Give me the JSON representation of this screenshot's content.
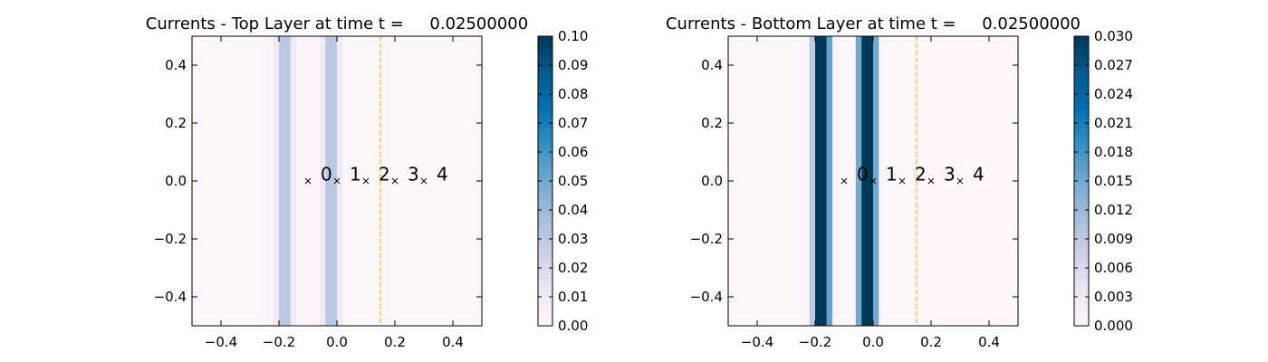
{
  "chart_data": [
    {
      "type": "heatmap",
      "title": "Currents - Top Layer at time t =     0.02500000",
      "xlim": [
        -0.5,
        0.5
      ],
      "ylim": [
        -0.5,
        0.5
      ],
      "xticks": [
        -0.4,
        -0.2,
        0.0,
        0.2,
        0.4
      ],
      "xtick_labels": [
        "−0.4",
        "−0.2",
        "0.0",
        "0.2",
        "0.4"
      ],
      "yticks": [
        -0.4,
        -0.2,
        0.0,
        0.2,
        0.4
      ],
      "ytick_labels": [
        "−0.4",
        "−0.2",
        "0.0",
        "0.2",
        "0.4"
      ],
      "colormap": "Blues",
      "colorbar": {
        "min": 0.0,
        "max": 0.1,
        "ticks": [
          0.0,
          0.01,
          0.02,
          0.03,
          0.04,
          0.05,
          0.06,
          0.07,
          0.08,
          0.09,
          0.1
        ],
        "tick_labels": [
          "0.00",
          "0.01",
          "0.02",
          "0.03",
          "0.04",
          "0.05",
          "0.06",
          "0.07",
          "0.08",
          "0.09",
          "0.10"
        ]
      },
      "columns": [
        {
          "x0": -0.5,
          "x1": -0.25,
          "value": 0.001
        },
        {
          "x0": -0.25,
          "x1": -0.22,
          "value": 0.004
        },
        {
          "x0": -0.22,
          "x1": -0.2,
          "value": 0.01
        },
        {
          "x0": -0.2,
          "x1": -0.16,
          "value": 0.031
        },
        {
          "x0": -0.16,
          "x1": -0.14,
          "value": 0.01
        },
        {
          "x0": -0.14,
          "x1": -0.06,
          "value": 0.002
        },
        {
          "x0": -0.06,
          "x1": -0.04,
          "value": 0.01
        },
        {
          "x0": -0.04,
          "x1": 0.0,
          "value": 0.031
        },
        {
          "x0": 0.0,
          "x1": 0.02,
          "value": 0.01
        },
        {
          "x0": 0.02,
          "x1": 0.5,
          "value": 0.001
        }
      ],
      "markers": [
        {
          "x": -0.1,
          "y": 0.0,
          "label": "0"
        },
        {
          "x": 0.0,
          "y": 0.0,
          "label": "1"
        },
        {
          "x": 0.1,
          "y": 0.0,
          "label": "2"
        },
        {
          "x": 0.2,
          "y": 0.0,
          "label": "3"
        },
        {
          "x": 0.3,
          "y": 0.0,
          "label": "4"
        }
      ],
      "vline": {
        "x": 0.15,
        "color": "#e8b600",
        "style": "dashed"
      }
    },
    {
      "type": "heatmap",
      "title": "Currents - Bottom Layer at time t =     0.02500000",
      "xlim": [
        -0.5,
        0.5
      ],
      "ylim": [
        -0.5,
        0.5
      ],
      "xticks": [
        -0.4,
        -0.2,
        0.0,
        0.2,
        0.4
      ],
      "xtick_labels": [
        "−0.4",
        "−0.2",
        "0.0",
        "0.2",
        "0.4"
      ],
      "yticks": [
        -0.4,
        -0.2,
        0.0,
        0.2,
        0.4
      ],
      "ytick_labels": [
        "−0.4",
        "−0.2",
        "0.0",
        "0.2",
        "0.4"
      ],
      "colormap": "Blues",
      "colorbar": {
        "min": 0.0,
        "max": 0.03,
        "ticks": [
          0.0,
          0.003,
          0.006,
          0.009,
          0.012,
          0.015,
          0.018,
          0.021,
          0.024,
          0.027,
          0.03
        ],
        "tick_labels": [
          "0.000",
          "0.003",
          "0.006",
          "0.009",
          "0.012",
          "0.015",
          "0.018",
          "0.021",
          "0.024",
          "0.027",
          "0.030"
        ]
      },
      "columns": [
        {
          "x0": -0.5,
          "x1": -0.22,
          "value": 0.0003
        },
        {
          "x0": -0.22,
          "x1": -0.2,
          "value": 0.009
        },
        {
          "x0": -0.2,
          "x1": -0.16,
          "value": 0.03
        },
        {
          "x0": -0.16,
          "x1": -0.14,
          "value": 0.016
        },
        {
          "x0": -0.14,
          "x1": -0.12,
          "value": 0.001
        },
        {
          "x0": -0.12,
          "x1": -0.06,
          "value": 0.0003
        },
        {
          "x0": -0.06,
          "x1": -0.04,
          "value": 0.015
        },
        {
          "x0": -0.04,
          "x1": 0.0,
          "value": 0.03
        },
        {
          "x0": 0.0,
          "x1": 0.02,
          "value": 0.015
        },
        {
          "x0": 0.02,
          "x1": 0.15,
          "value": 0.0003
        },
        {
          "x0": 0.15,
          "x1": 0.5,
          "value": 0.0
        }
      ],
      "markers": [
        {
          "x": -0.1,
          "y": 0.0,
          "label": "0"
        },
        {
          "x": 0.0,
          "y": 0.0,
          "label": "1"
        },
        {
          "x": 0.1,
          "y": 0.0,
          "label": "2"
        },
        {
          "x": 0.2,
          "y": 0.0,
          "label": "3"
        },
        {
          "x": 0.3,
          "y": 0.0,
          "label": "4"
        }
      ],
      "vline": {
        "x": 0.15,
        "color": "#e8b600",
        "style": "dashed"
      }
    }
  ]
}
